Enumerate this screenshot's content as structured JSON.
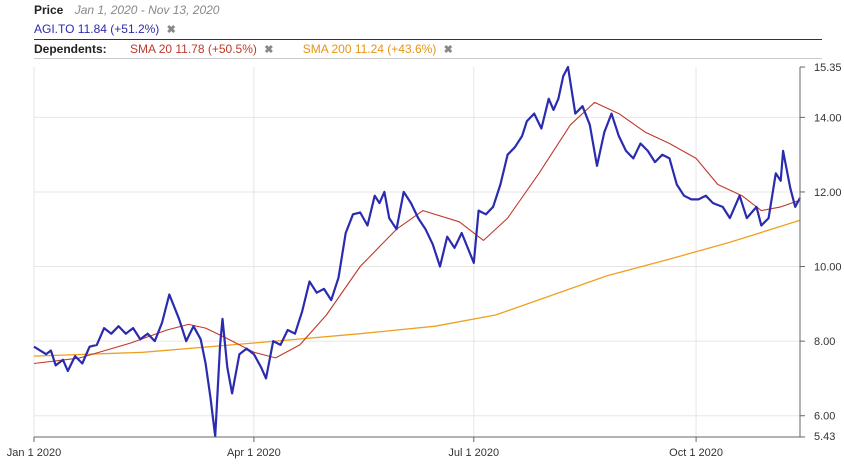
{
  "header": {
    "price_label": "Price",
    "date_range": "Jan 1, 2020 - Nov 13, 2020",
    "symbol_text": "AGI.TO 11.84 (+51.2%)",
    "dependents_label": "Dependents:",
    "sma20_text": "SMA 20 11.78 (+50.5%)",
    "sma200_text": "SMA 200 11.24 (+43.6%)",
    "close_glyph": "✖"
  },
  "colors": {
    "price": "#2b2bb0",
    "sma20": "#c0392b",
    "sma200": "#f0a020",
    "grid": "#e6e6e6"
  },
  "chart_data": {
    "type": "line",
    "x_range": [
      "2020-01-01",
      "2020-11-13"
    ],
    "ylim": [
      5.43,
      15.35
    ],
    "y_ticks": [
      "15.35",
      "14.00",
      "12.00",
      "10.00",
      "8.00",
      "6.00",
      "5.43"
    ],
    "x_ticks": [
      {
        "date": "2020-01-01",
        "label": "Jan 1 2020"
      },
      {
        "date": "2020-04-01",
        "label": "Apr 1 2020"
      },
      {
        "date": "2020-07-01",
        "label": "Jul 1 2020"
      },
      {
        "date": "2020-10-01",
        "label": "Oct 1 2020"
      }
    ],
    "series": [
      {
        "name": "AGI.TO",
        "points": [
          [
            "2020-01-01",
            7.85
          ],
          [
            "2020-01-06",
            7.65
          ],
          [
            "2020-01-08",
            7.75
          ],
          [
            "2020-01-10",
            7.35
          ],
          [
            "2020-01-13",
            7.5
          ],
          [
            "2020-01-15",
            7.2
          ],
          [
            "2020-01-18",
            7.6
          ],
          [
            "2020-01-21",
            7.4
          ],
          [
            "2020-01-24",
            7.85
          ],
          [
            "2020-01-27",
            7.9
          ],
          [
            "2020-01-30",
            8.35
          ],
          [
            "2020-02-02",
            8.2
          ],
          [
            "2020-02-05",
            8.4
          ],
          [
            "2020-02-08",
            8.2
          ],
          [
            "2020-02-11",
            8.35
          ],
          [
            "2020-02-14",
            8.05
          ],
          [
            "2020-02-17",
            8.2
          ],
          [
            "2020-02-20",
            8.0
          ],
          [
            "2020-02-23",
            8.5
          ],
          [
            "2020-02-26",
            9.25
          ],
          [
            "2020-03-01",
            8.6
          ],
          [
            "2020-03-04",
            8.0
          ],
          [
            "2020-03-07",
            8.4
          ],
          [
            "2020-03-10",
            8.05
          ],
          [
            "2020-03-12",
            7.4
          ],
          [
            "2020-03-14",
            6.5
          ],
          [
            "2020-03-16",
            5.45
          ],
          [
            "2020-03-18",
            7.9
          ],
          [
            "2020-03-19",
            8.6
          ],
          [
            "2020-03-21",
            7.3
          ],
          [
            "2020-03-23",
            6.6
          ],
          [
            "2020-03-26",
            7.65
          ],
          [
            "2020-03-29",
            7.8
          ],
          [
            "2020-04-01",
            7.65
          ],
          [
            "2020-04-04",
            7.3
          ],
          [
            "2020-04-06",
            7.0
          ],
          [
            "2020-04-09",
            8.0
          ],
          [
            "2020-04-12",
            7.9
          ],
          [
            "2020-04-15",
            8.3
          ],
          [
            "2020-04-18",
            8.2
          ],
          [
            "2020-04-21",
            8.8
          ],
          [
            "2020-04-24",
            9.6
          ],
          [
            "2020-04-27",
            9.3
          ],
          [
            "2020-04-30",
            9.4
          ],
          [
            "2020-05-03",
            9.1
          ],
          [
            "2020-05-06",
            9.7
          ],
          [
            "2020-05-09",
            10.9
          ],
          [
            "2020-05-12",
            11.4
          ],
          [
            "2020-05-15",
            11.45
          ],
          [
            "2020-05-18",
            11.1
          ],
          [
            "2020-05-21",
            11.9
          ],
          [
            "2020-05-23",
            11.7
          ],
          [
            "2020-05-25",
            12.0
          ],
          [
            "2020-05-27",
            11.3
          ],
          [
            "2020-05-30",
            11.0
          ],
          [
            "2020-06-02",
            12.0
          ],
          [
            "2020-06-05",
            11.7
          ],
          [
            "2020-06-08",
            11.3
          ],
          [
            "2020-06-11",
            11.0
          ],
          [
            "2020-06-14",
            10.6
          ],
          [
            "2020-06-17",
            10.0
          ],
          [
            "2020-06-20",
            10.8
          ],
          [
            "2020-06-23",
            10.5
          ],
          [
            "2020-06-26",
            10.9
          ],
          [
            "2020-07-01",
            10.1
          ],
          [
            "2020-07-03",
            11.5
          ],
          [
            "2020-07-06",
            11.4
          ],
          [
            "2020-07-09",
            11.6
          ],
          [
            "2020-07-12",
            12.2
          ],
          [
            "2020-07-15",
            13.0
          ],
          [
            "2020-07-18",
            13.2
          ],
          [
            "2020-07-21",
            13.5
          ],
          [
            "2020-07-23",
            13.9
          ],
          [
            "2020-07-26",
            14.1
          ],
          [
            "2020-07-29",
            13.7
          ],
          [
            "2020-08-01",
            14.5
          ],
          [
            "2020-08-03",
            14.2
          ],
          [
            "2020-08-05",
            14.5
          ],
          [
            "2020-08-07",
            15.1
          ],
          [
            "2020-08-09",
            15.35
          ],
          [
            "2020-08-12",
            14.1
          ],
          [
            "2020-08-15",
            14.3
          ],
          [
            "2020-08-18",
            13.8
          ],
          [
            "2020-08-21",
            12.7
          ],
          [
            "2020-08-24",
            13.6
          ],
          [
            "2020-08-27",
            14.1
          ],
          [
            "2020-08-30",
            13.5
          ],
          [
            "2020-09-02",
            13.1
          ],
          [
            "2020-09-05",
            12.9
          ],
          [
            "2020-09-08",
            13.3
          ],
          [
            "2020-09-11",
            13.1
          ],
          [
            "2020-09-14",
            12.8
          ],
          [
            "2020-09-17",
            13.0
          ],
          [
            "2020-09-20",
            12.9
          ],
          [
            "2020-09-23",
            12.2
          ],
          [
            "2020-09-26",
            11.9
          ],
          [
            "2020-09-29",
            11.8
          ],
          [
            "2020-10-02",
            11.8
          ],
          [
            "2020-10-05",
            11.9
          ],
          [
            "2020-10-08",
            11.7
          ],
          [
            "2020-10-12",
            11.6
          ],
          [
            "2020-10-15",
            11.3
          ],
          [
            "2020-10-19",
            11.9
          ],
          [
            "2020-10-22",
            11.3
          ],
          [
            "2020-10-26",
            11.6
          ],
          [
            "2020-10-28",
            11.1
          ],
          [
            "2020-10-31",
            11.3
          ],
          [
            "2020-11-03",
            12.5
          ],
          [
            "2020-11-05",
            12.3
          ],
          [
            "2020-11-06",
            13.1
          ],
          [
            "2020-11-09",
            12.1
          ],
          [
            "2020-11-11",
            11.6
          ],
          [
            "2020-11-13",
            11.84
          ]
        ]
      },
      {
        "name": "SMA 20",
        "points": [
          [
            "2020-01-01",
            7.4
          ],
          [
            "2020-01-20",
            7.55
          ],
          [
            "2020-02-10",
            7.95
          ],
          [
            "2020-02-25",
            8.3
          ],
          [
            "2020-03-05",
            8.45
          ],
          [
            "2020-03-12",
            8.35
          ],
          [
            "2020-03-20",
            8.1
          ],
          [
            "2020-04-01",
            7.7
          ],
          [
            "2020-04-10",
            7.55
          ],
          [
            "2020-04-20",
            7.9
          ],
          [
            "2020-05-01",
            8.7
          ],
          [
            "2020-05-15",
            10.0
          ],
          [
            "2020-05-30",
            11.0
          ],
          [
            "2020-06-10",
            11.5
          ],
          [
            "2020-06-25",
            11.2
          ],
          [
            "2020-07-05",
            10.7
          ],
          [
            "2020-07-15",
            11.3
          ],
          [
            "2020-07-28",
            12.5
          ],
          [
            "2020-08-10",
            13.8
          ],
          [
            "2020-08-20",
            14.4
          ],
          [
            "2020-08-30",
            14.1
          ],
          [
            "2020-09-10",
            13.6
          ],
          [
            "2020-09-20",
            13.3
          ],
          [
            "2020-10-01",
            12.9
          ],
          [
            "2020-10-10",
            12.2
          ],
          [
            "2020-10-20",
            11.9
          ],
          [
            "2020-10-28",
            11.5
          ],
          [
            "2020-11-05",
            11.6
          ],
          [
            "2020-11-13",
            11.78
          ]
        ]
      },
      {
        "name": "SMA 200",
        "points": [
          [
            "2020-01-01",
            7.6
          ],
          [
            "2020-02-15",
            7.7
          ],
          [
            "2020-04-01",
            7.95
          ],
          [
            "2020-05-15",
            8.2
          ],
          [
            "2020-06-15",
            8.4
          ],
          [
            "2020-07-10",
            8.7
          ],
          [
            "2020-08-01",
            9.2
          ],
          [
            "2020-08-25",
            9.75
          ],
          [
            "2020-09-20",
            10.2
          ],
          [
            "2020-10-15",
            10.65
          ],
          [
            "2020-11-13",
            11.24
          ]
        ]
      }
    ]
  }
}
